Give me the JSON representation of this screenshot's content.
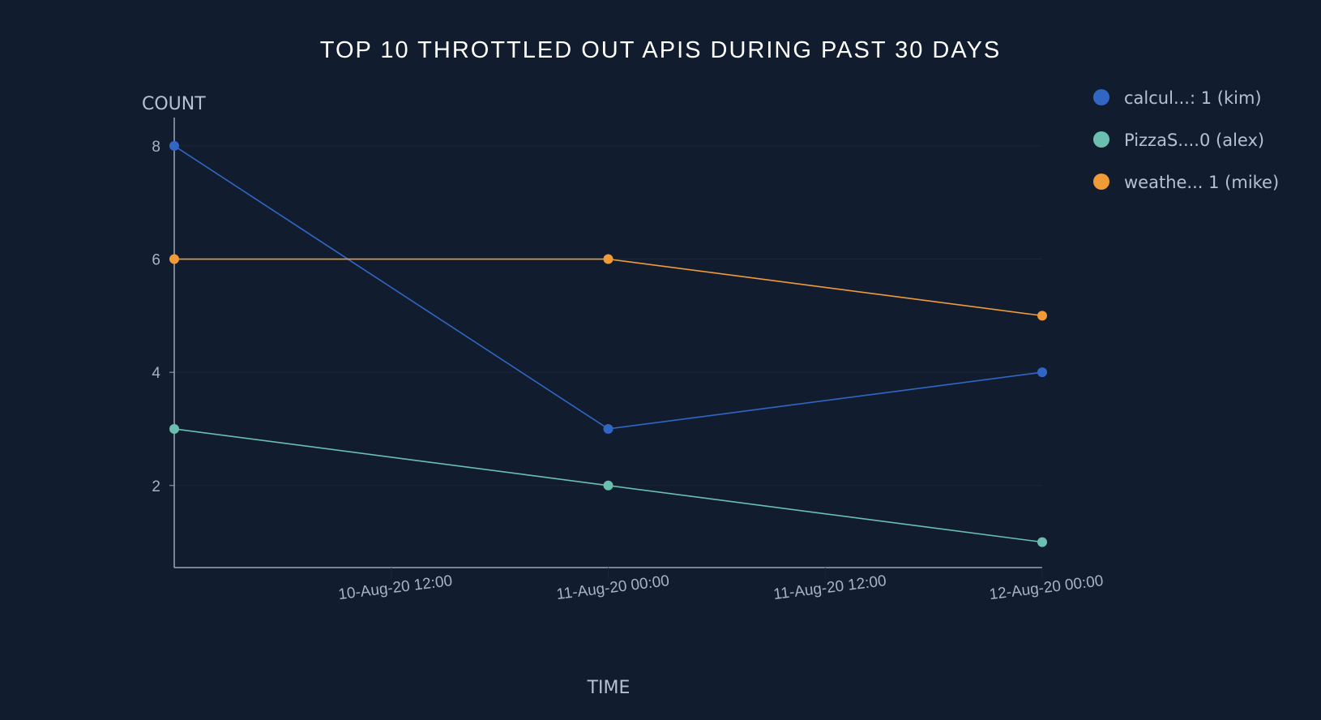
{
  "colors": {
    "background": "#111d2f",
    "axis": "#9aa5b8",
    "grid": "#1b2638",
    "text": "#b6c0d2"
  },
  "chart_data": {
    "type": "line",
    "title": "TOP 10 THROTTLED OUT APIS DURING PAST 30 DAYS",
    "xlabel": "TIME",
    "ylabel": "COUNT",
    "x": [
      "2020-08-10T00:00",
      "2020-08-11T00:00",
      "2020-08-12T00:00"
    ],
    "x_ticks": [
      "10-Aug-20 12:00",
      "11-Aug-20 00:00",
      "11-Aug-20 12:00",
      "12-Aug-20 00:00"
    ],
    "x_tick_values": [
      "2020-08-10T12:00",
      "2020-08-11T00:00",
      "2020-08-11T12:00",
      "2020-08-12T00:00"
    ],
    "xlim": [
      "2020-08-10T00:00",
      "2020-08-12T00:00"
    ],
    "y_ticks": [
      2,
      4,
      6,
      8
    ],
    "ylim": [
      0.55,
      8.5
    ],
    "grid": true,
    "legend_position": "right",
    "series": [
      {
        "name": "calcul...: 1 (kim)",
        "color": "#3166c4",
        "values": [
          8,
          3,
          4
        ]
      },
      {
        "name": "PizzaS....0 (alex)",
        "color": "#6bbfb1",
        "values": [
          3,
          2,
          1
        ]
      },
      {
        "name": "weathe... 1 (mike)",
        "color": "#f09b38",
        "values": [
          6,
          6,
          5
        ]
      }
    ]
  }
}
